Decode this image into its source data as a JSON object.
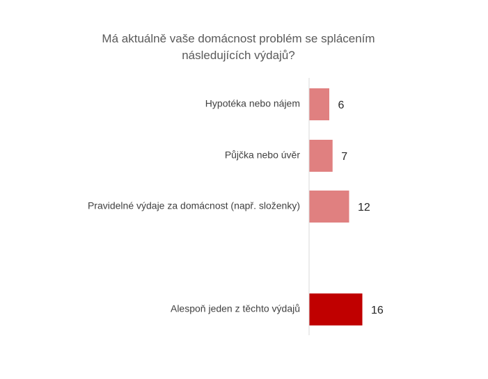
{
  "chart_data": {
    "type": "bar",
    "orientation": "horizontal",
    "title_lines": [
      "Má aktuálně vaše domácnost problém se splácením",
      "následujících výdajů?"
    ],
    "categories": [
      "Hypotéka nebo nájem",
      "Půjčka nebo úvěr",
      "Pravidelné výdaje za domácnost (např. složenky)",
      "Alespoň jeden z těchto výdajů"
    ],
    "values": [
      6,
      7,
      12,
      16
    ],
    "value_labels": [
      "6",
      "7",
      "12",
      "16"
    ],
    "colors": [
      "#e08080",
      "#e08080",
      "#e08080",
      "#c00000"
    ],
    "axis_color": "#d9d9d9",
    "grid": false,
    "legend": "none",
    "xlim": [
      0,
      40
    ]
  }
}
